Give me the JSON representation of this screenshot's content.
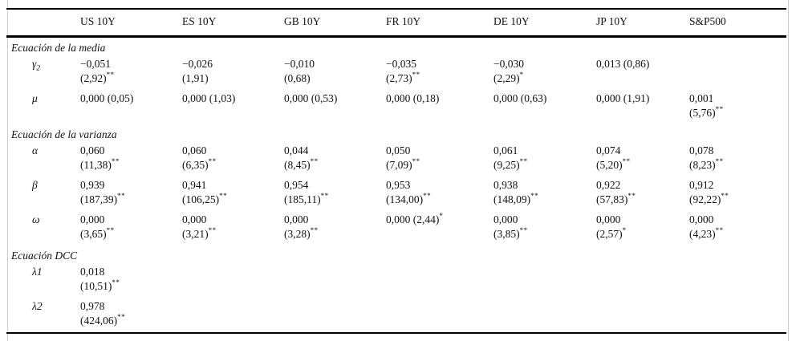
{
  "table": {
    "columns": [
      "",
      "US 10Y",
      "ES 10Y",
      "GB 10Y",
      "FR 10Y",
      "DE 10Y",
      "JP 10Y",
      "S&P500"
    ],
    "sections": [
      {
        "title": "Ecuación de la media",
        "rows": [
          {
            "label": "γ",
            "label_sub": "2",
            "cells": [
              {
                "v": "−0,051",
                "t": "(2,92)",
                "sup": "**",
                "layout": "stacked"
              },
              {
                "v": "−0,026",
                "t": "(1,91)",
                "sup": "",
                "layout": "stacked"
              },
              {
                "v": "−0,010",
                "t": "(0,68)",
                "sup": "",
                "layout": "stacked"
              },
              {
                "v": "−0,035",
                "t": "(2,73)",
                "sup": "**",
                "layout": "stacked"
              },
              {
                "v": "−0,030",
                "t": "(2,29)",
                "sup": "*",
                "layout": "stacked"
              },
              {
                "v": "0,013",
                "t": "(0,86)",
                "sup": "",
                "layout": "inline"
              },
              null
            ]
          },
          {
            "label": "μ",
            "label_sub": "",
            "cells": [
              {
                "v": "0,000",
                "t": "(0,05)",
                "sup": "",
                "layout": "inline"
              },
              {
                "v": "0,000",
                "t": "(1,03)",
                "sup": "",
                "layout": "inline"
              },
              {
                "v": "0,000",
                "t": "(0,53)",
                "sup": "",
                "layout": "inline"
              },
              {
                "v": "0,000",
                "t": "(0,18)",
                "sup": "",
                "layout": "inline"
              },
              {
                "v": "0,000",
                "t": "(0,63)",
                "sup": "",
                "layout": "inline"
              },
              {
                "v": "0,000",
                "t": "(1,91)",
                "sup": "",
                "layout": "inline"
              },
              {
                "v": "0,001",
                "t": "(5,76)",
                "sup": "**",
                "layout": "stacked"
              }
            ]
          }
        ]
      },
      {
        "title": "Ecuación de la varianza",
        "rows": [
          {
            "label": "α",
            "label_sub": "",
            "cells": [
              {
                "v": "0,060",
                "t": "(11,38)",
                "sup": "**",
                "layout": "stacked"
              },
              {
                "v": "0,060",
                "t": "(6,35)",
                "sup": "**",
                "layout": "stacked"
              },
              {
                "v": "0,044",
                "t": "(8,45)",
                "sup": "**",
                "layout": "stacked"
              },
              {
                "v": "0,050",
                "t": "(7,09)",
                "sup": "**",
                "layout": "stacked"
              },
              {
                "v": "0,061",
                "t": "(9,25)",
                "sup": "**",
                "layout": "stacked"
              },
              {
                "v": "0,074",
                "t": "(5,20)",
                "sup": "**",
                "layout": "stacked"
              },
              {
                "v": "0,078",
                "t": "(8,23)",
                "sup": "**",
                "layout": "stacked"
              }
            ]
          },
          {
            "label": "β",
            "label_sub": "",
            "cells": [
              {
                "v": "0,939",
                "t": "(187,39)",
                "sup": "**",
                "layout": "stacked"
              },
              {
                "v": "0,941",
                "t": "(106,25)",
                "sup": "**",
                "layout": "stacked"
              },
              {
                "v": "0,954",
                "t": "(185,11)",
                "sup": "**",
                "layout": "stacked"
              },
              {
                "v": "0,953",
                "t": "(134,00)",
                "sup": "**",
                "layout": "stacked"
              },
              {
                "v": "0,938",
                "t": "(148,09)",
                "sup": "**",
                "layout": "stacked"
              },
              {
                "v": "0,922",
                "t": "(57,83)",
                "sup": "**",
                "layout": "stacked"
              },
              {
                "v": "0,912",
                "t": "(92,22)",
                "sup": "**",
                "layout": "stacked"
              }
            ]
          },
          {
            "label": "ω",
            "label_sub": "",
            "cells": [
              {
                "v": "0,000",
                "t": "(3,65)",
                "sup": "**",
                "layout": "stacked"
              },
              {
                "v": "0,000",
                "t": "(3,21)",
                "sup": "**",
                "layout": "stacked"
              },
              {
                "v": "0,000",
                "t": "(3,28)",
                "sup": "**",
                "layout": "stacked"
              },
              {
                "v": "0,000",
                "t": "(2,44)",
                "sup": "*",
                "layout": "inline"
              },
              {
                "v": "0,000",
                "t": "(3,85)",
                "sup": "**",
                "layout": "stacked"
              },
              {
                "v": "0,000",
                "t": "(2,57)",
                "sup": "*",
                "layout": "stacked"
              },
              {
                "v": "0,000",
                "t": "(4,23)",
                "sup": "**",
                "layout": "stacked"
              }
            ]
          }
        ]
      },
      {
        "title": "Ecuación DCC",
        "rows": [
          {
            "label": "λ1",
            "label_sub": "",
            "cells": [
              {
                "v": "0,018",
                "t": "(10,51)",
                "sup": "**",
                "layout": "stacked"
              },
              null,
              null,
              null,
              null,
              null,
              null
            ]
          },
          {
            "label": "λ2",
            "label_sub": "",
            "cells": [
              {
                "v": "0,978",
                "t": "(424,06)",
                "sup": "**",
                "layout": "stacked"
              },
              null,
              null,
              null,
              null,
              null,
              null
            ]
          }
        ]
      }
    ]
  }
}
